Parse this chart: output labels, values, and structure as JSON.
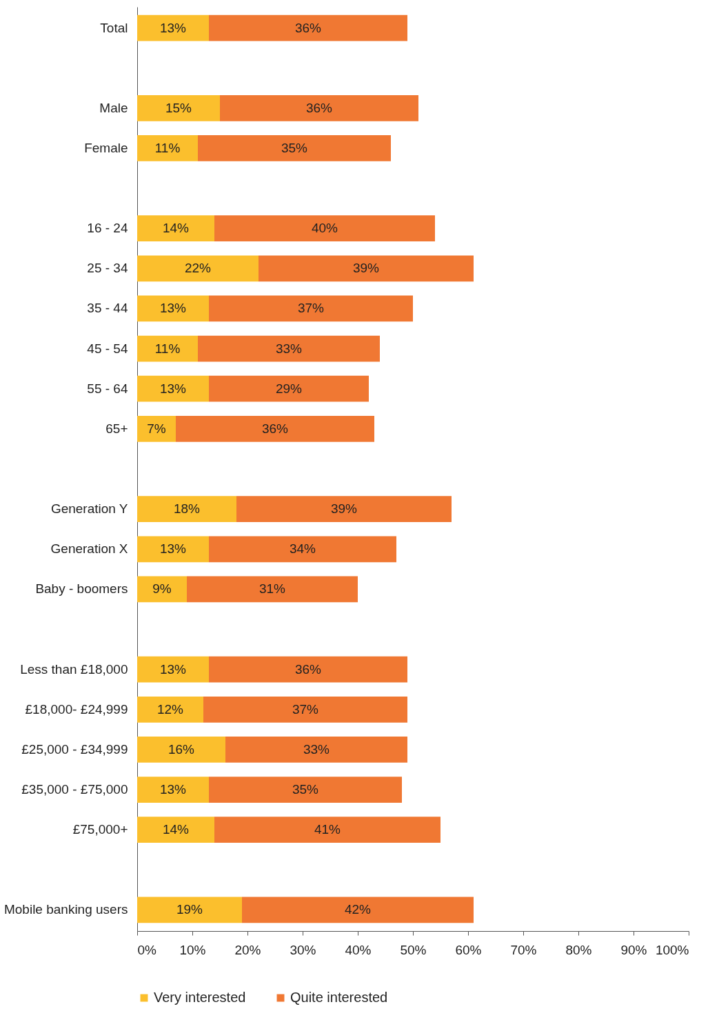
{
  "chart_data": {
    "type": "bar",
    "orientation": "horizontal",
    "stacked": true,
    "categories": [
      "Total",
      null,
      "Male",
      "Female",
      null,
      "16 - 24",
      "25 - 34",
      "35 - 44",
      "45 - 54",
      "55 - 64",
      "65+",
      null,
      "Generation Y",
      "Generation X",
      "Baby - boomers",
      null,
      "Less than £18,000",
      "£18,000- £24,999",
      "£25,000 - £34,999",
      "£35,000 - £75,000",
      "£75,000+",
      null,
      "Mobile banking users"
    ],
    "series": [
      {
        "name": "Very interested",
        "color": "#fbbf2d",
        "values": [
          13,
          null,
          15,
          11,
          null,
          14,
          22,
          13,
          11,
          13,
          7,
          null,
          18,
          13,
          9,
          null,
          13,
          12,
          16,
          13,
          14,
          null,
          19
        ],
        "value_labels": [
          "13%",
          null,
          "15%",
          "11%",
          null,
          "14%",
          "22%",
          "13%",
          "11%",
          "13%",
          "7%",
          null,
          "18%",
          "13%",
          "9%",
          null,
          "13%",
          "12%",
          "16%",
          "13%",
          "14%",
          null,
          "19%"
        ]
      },
      {
        "name": "Quite interested",
        "color": "#f07833",
        "values": [
          36,
          null,
          36,
          35,
          null,
          40,
          39,
          37,
          33,
          29,
          36,
          null,
          39,
          34,
          31,
          null,
          36,
          37,
          33,
          35,
          41,
          null,
          42
        ],
        "value_labels": [
          "36%",
          null,
          "36%",
          "35%",
          null,
          "40%",
          "39%",
          "37%",
          "33%",
          "29%",
          "36%",
          null,
          "39%",
          "34%",
          "31%",
          null,
          "36%",
          "37%",
          "33%",
          "35%",
          "41%",
          null,
          "42%"
        ]
      }
    ],
    "xlim": [
      0,
      100
    ],
    "xticks": [
      {
        "value": 0,
        "label": "0%"
      },
      {
        "value": 10,
        "label": "10%"
      },
      {
        "value": 20,
        "label": "20%"
      },
      {
        "value": 30,
        "label": "30%"
      },
      {
        "value": 40,
        "label": "40%"
      },
      {
        "value": 50,
        "label": "50%"
      },
      {
        "value": 60,
        "label": "60%"
      },
      {
        "value": 70,
        "label": "70%"
      },
      {
        "value": 80,
        "label": "80%"
      },
      {
        "value": 90,
        "label": "90%"
      },
      {
        "value": 100,
        "label": "100%"
      }
    ],
    "grid": false,
    "legend": "bottom"
  }
}
